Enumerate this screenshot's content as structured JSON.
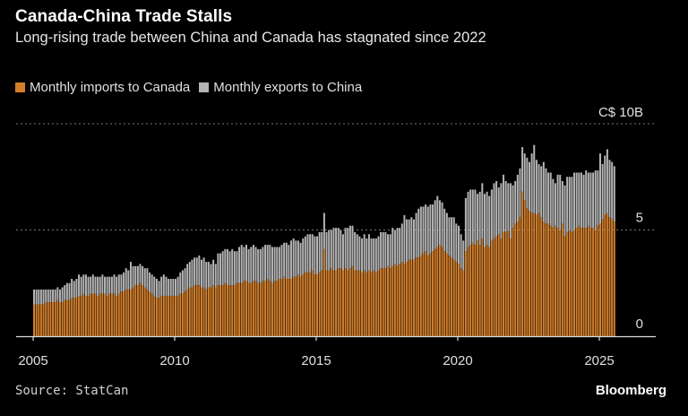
{
  "header": {
    "title": "Canada-China Trade Stalls",
    "subtitle": "Long-rising trade between China and Canada has stagnated since 2022"
  },
  "footer": {
    "source": "Source: StatCan",
    "brand": "Bloomberg"
  },
  "chart_data": {
    "type": "bar",
    "stacked": true,
    "frequency": "monthly",
    "start": "2005-01",
    "end": "2025-07",
    "ylim": [
      0,
      10
    ],
    "y_unit_label": "C$ 10B",
    "y_ticks": [
      {
        "value": 10,
        "label": "C$ 10B"
      },
      {
        "value": 5,
        "label": "5"
      },
      {
        "value": 0,
        "label": "0"
      }
    ],
    "x_ticks": [
      "2005",
      "2010",
      "2015",
      "2020",
      "2025"
    ],
    "xlim": [
      2004.4,
      2027.5
    ],
    "grid": "dotted horizontal",
    "legend_position": "top-left",
    "colors": {
      "imports": "#d27f2c",
      "exports": "#b4b4b4"
    },
    "series": [
      {
        "name": "Monthly imports to Canada",
        "values": [
          1.5,
          1.5,
          1.5,
          1.5,
          1.5,
          1.6,
          1.6,
          1.6,
          1.6,
          1.6,
          1.7,
          1.6,
          1.6,
          1.7,
          1.7,
          1.7,
          1.8,
          1.8,
          1.8,
          1.9,
          1.9,
          2.0,
          1.9,
          1.9,
          2.0,
          2.0,
          2.0,
          1.9,
          2.0,
          2.0,
          2.0,
          1.9,
          2.0,
          2.0,
          2.0,
          1.9,
          2.0,
          2.1,
          2.1,
          2.2,
          2.2,
          2.2,
          2.3,
          2.4,
          2.4,
          2.5,
          2.4,
          2.3,
          2.2,
          2.1,
          2.0,
          1.9,
          1.8,
          1.8,
          1.9,
          1.9,
          1.9,
          1.9,
          1.9,
          1.9,
          1.9,
          1.9,
          2.0,
          2.0,
          2.1,
          2.2,
          2.3,
          2.3,
          2.4,
          2.4,
          2.4,
          2.3,
          2.3,
          2.2,
          2.3,
          2.3,
          2.4,
          2.3,
          2.4,
          2.4,
          2.4,
          2.5,
          2.4,
          2.4,
          2.4,
          2.4,
          2.5,
          2.5,
          2.5,
          2.6,
          2.6,
          2.5,
          2.5,
          2.6,
          2.6,
          2.5,
          2.5,
          2.6,
          2.6,
          2.7,
          2.6,
          2.5,
          2.6,
          2.6,
          2.7,
          2.7,
          2.8,
          2.7,
          2.7,
          2.7,
          2.8,
          2.8,
          2.9,
          2.8,
          2.9,
          3.0,
          3.0,
          3.0,
          3.1,
          2.9,
          2.9,
          3.0,
          3.1,
          4.1,
          3.1,
          3.1,
          3.2,
          3.1,
          3.1,
          3.2,
          3.2,
          3.1,
          3.2,
          3.1,
          3.2,
          3.3,
          3.1,
          3.1,
          3.1,
          3.0,
          3.1,
          3.0,
          3.1,
          3.0,
          3.1,
          3.0,
          3.1,
          3.2,
          3.2,
          3.2,
          3.3,
          3.2,
          3.3,
          3.4,
          3.3,
          3.4,
          3.5,
          3.4,
          3.5,
          3.6,
          3.6,
          3.6,
          3.7,
          3.7,
          3.8,
          3.9,
          4.0,
          3.8,
          3.9,
          4.0,
          4.1,
          4.2,
          4.3,
          4.2,
          4.0,
          3.9,
          3.8,
          3.7,
          3.6,
          3.5,
          3.4,
          3.2,
          3.1,
          4.0,
          4.2,
          4.3,
          4.4,
          4.3,
          4.5,
          4.3,
          4.6,
          4.2,
          4.3,
          4.2,
          4.5,
          4.6,
          4.7,
          4.8,
          4.6,
          4.9,
          4.9,
          5.0,
          4.6,
          5.1,
          5.3,
          5.4,
          5.6,
          6.8,
          6.4,
          6.0,
          5.9,
          5.8,
          5.8,
          5.7,
          5.8,
          5.6,
          5.4,
          5.3,
          5.3,
          5.2,
          5.1,
          5.2,
          5.1,
          5.0,
          5.3,
          4.7,
          4.9,
          5.0,
          4.9,
          5.0,
          5.1,
          5.2,
          5.1,
          5.1,
          5.1,
          5.2,
          5.1,
          5.1,
          5.0,
          5.2,
          5.3,
          5.5,
          5.7,
          5.8,
          5.6,
          5.5,
          5.4
        ]
      },
      {
        "name": "Monthly exports to China",
        "values": [
          0.7,
          0.7,
          0.7,
          0.7,
          0.7,
          0.6,
          0.6,
          0.6,
          0.6,
          0.6,
          0.6,
          0.6,
          0.7,
          0.7,
          0.8,
          0.8,
          0.9,
          0.8,
          0.9,
          1.0,
          0.9,
          0.9,
          1.0,
          0.9,
          0.8,
          0.9,
          0.8,
          0.9,
          0.8,
          0.9,
          0.8,
          0.9,
          0.8,
          0.8,
          0.9,
          0.9,
          0.9,
          0.8,
          0.9,
          1.0,
          0.9,
          1.3,
          1.0,
          0.9,
          0.9,
          0.9,
          0.9,
          0.9,
          1.0,
          0.9,
          0.9,
          0.9,
          0.9,
          0.8,
          0.9,
          1.0,
          0.9,
          0.8,
          0.8,
          0.8,
          0.8,
          0.9,
          1.0,
          1.1,
          1.1,
          1.2,
          1.2,
          1.3,
          1.3,
          1.3,
          1.4,
          1.3,
          1.4,
          1.3,
          1.2,
          1.1,
          1.2,
          1.1,
          1.5,
          1.5,
          1.6,
          1.6,
          1.7,
          1.6,
          1.7,
          1.6,
          1.5,
          1.7,
          1.8,
          1.6,
          1.7,
          1.6,
          1.7,
          1.7,
          1.6,
          1.6,
          1.6,
          1.6,
          1.7,
          1.6,
          1.7,
          1.7,
          1.6,
          1.6,
          1.5,
          1.6,
          1.6,
          1.7,
          1.6,
          1.8,
          1.8,
          1.7,
          1.6,
          1.6,
          1.7,
          1.7,
          1.8,
          1.8,
          1.7,
          1.8,
          1.8,
          1.9,
          1.8,
          1.7,
          1.8,
          1.9,
          1.8,
          2.0,
          2.0,
          1.9,
          1.8,
          1.7,
          1.9,
          2.0,
          2.0,
          1.9,
          1.8,
          1.7,
          1.6,
          1.6,
          1.7,
          1.6,
          1.7,
          1.6,
          1.5,
          1.6,
          1.6,
          1.7,
          1.7,
          1.7,
          1.5,
          1.6,
          1.8,
          1.6,
          1.8,
          1.7,
          1.8,
          2.3,
          2.0,
          1.9,
          2.0,
          1.9,
          2.1,
          2.3,
          2.3,
          2.2,
          2.2,
          2.3,
          2.3,
          2.2,
          2.3,
          2.4,
          2.1,
          2.1,
          2.0,
          1.9,
          1.8,
          1.9,
          2.0,
          1.8,
          1.8,
          1.6,
          1.4,
          2.5,
          2.6,
          2.6,
          2.5,
          2.6,
          2.2,
          2.5,
          2.6,
          2.5,
          2.5,
          2.4,
          2.4,
          2.6,
          2.6,
          2.2,
          2.6,
          2.7,
          2.4,
          2.2,
          2.6,
          2.0,
          2.0,
          2.2,
          2.3,
          2.1,
          2.2,
          2.4,
          2.3,
          2.8,
          3.2,
          2.6,
          2.3,
          2.4,
          2.8,
          2.6,
          2.4,
          2.5,
          2.3,
          2.0,
          2.5,
          2.6,
          2.0,
          2.4,
          2.6,
          2.5,
          2.6,
          2.7,
          2.6,
          2.5,
          2.6,
          2.5,
          2.7,
          2.5,
          2.6,
          2.6,
          2.8,
          2.6,
          3.3,
          2.6,
          2.8,
          3.0,
          2.7,
          2.7,
          2.6
        ]
      }
    ]
  }
}
